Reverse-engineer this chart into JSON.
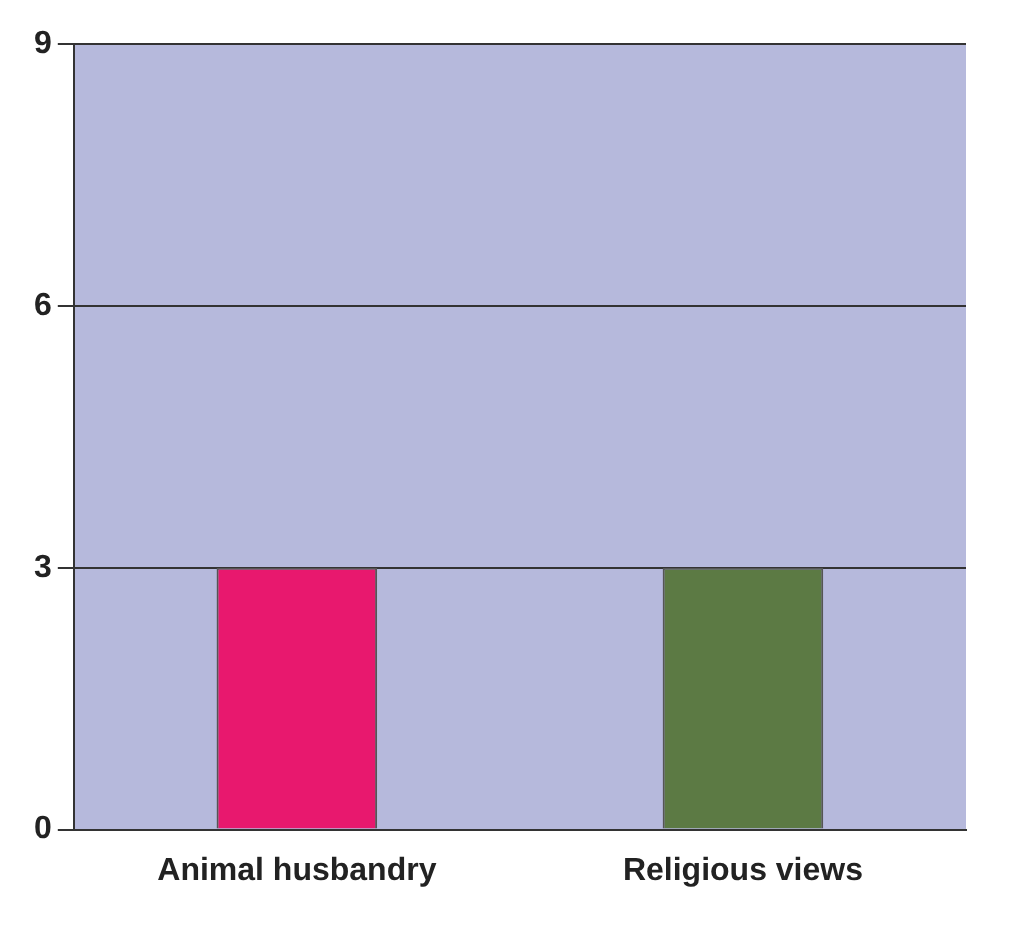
{
  "chart_data": {
    "type": "bar",
    "categories": [
      "Animal husbandry",
      "Religious views"
    ],
    "values": [
      3,
      3
    ],
    "colors": [
      "#e8186e",
      "#5c7a44"
    ],
    "ylim": [
      0,
      9
    ],
    "yticks": [
      0,
      3,
      6,
      9
    ],
    "grid": "y"
  }
}
